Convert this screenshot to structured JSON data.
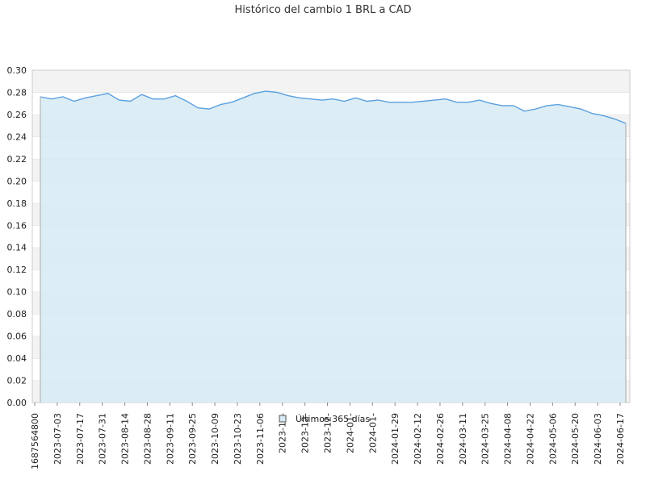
{
  "chart_data": {
    "type": "area",
    "title": "Histórico del cambio 1 BRL a CAD",
    "xlabel": "",
    "ylabel": "",
    "ylim": [
      0,
      0.3
    ],
    "y_ticks": [
      "0.00",
      "0.02",
      "0.04",
      "0.06",
      "0.08",
      "0.10",
      "0.12",
      "0.14",
      "0.16",
      "0.18",
      "0.20",
      "0.22",
      "0.24",
      "0.26",
      "0.28",
      "0.30"
    ],
    "x_tick_labels": [
      "1687564800",
      "2023-07-03",
      "2023-07-17",
      "2023-07-31",
      "2023-08-14",
      "2023-08-28",
      "2023-09-11",
      "2023-09-25",
      "2023-10-09",
      "2023-10-23",
      "2023-11-06",
      "2023-11-",
      "2023-12-",
      "2023-12-",
      "2024-01-",
      "2024-01-",
      "2024-01-29",
      "2024-02-12",
      "2024-02-26",
      "2024-03-11",
      "2024-03-25",
      "2024-04-08",
      "2024-04-22",
      "2024-05-06",
      "2024-05-20",
      "2024-06-03",
      "2024-06-17"
    ],
    "legend": {
      "label": "Últimos 365 días",
      "placement": "bottom-center"
    },
    "grid": true,
    "series": [
      {
        "name": "Últimos 365 días",
        "color": "#5aa0e0",
        "fill": "#d6eaf3",
        "x": [
          "2023-06-24",
          "2023-07-01",
          "2023-07-08",
          "2023-07-15",
          "2023-07-22",
          "2023-07-29",
          "2023-08-05",
          "2023-08-12",
          "2023-08-19",
          "2023-08-26",
          "2023-09-02",
          "2023-09-09",
          "2023-09-16",
          "2023-09-23",
          "2023-09-30",
          "2023-10-07",
          "2023-10-14",
          "2023-10-21",
          "2023-10-28",
          "2023-11-04",
          "2023-11-11",
          "2023-11-18",
          "2023-11-25",
          "2023-12-02",
          "2023-12-09",
          "2023-12-16",
          "2023-12-23",
          "2023-12-30",
          "2024-01-06",
          "2024-01-13",
          "2024-01-20",
          "2024-01-27",
          "2024-02-03",
          "2024-02-10",
          "2024-02-17",
          "2024-02-24",
          "2024-03-02",
          "2024-03-09",
          "2024-03-16",
          "2024-03-23",
          "2024-03-30",
          "2024-04-06",
          "2024-04-13",
          "2024-04-20",
          "2024-04-27",
          "2024-05-04",
          "2024-05-11",
          "2024-05-18",
          "2024-05-25",
          "2024-06-01",
          "2024-06-08",
          "2024-06-15",
          "2024-06-22"
        ],
        "values": [
          0.276,
          0.274,
          0.276,
          0.272,
          0.275,
          0.277,
          0.279,
          0.273,
          0.272,
          0.278,
          0.274,
          0.274,
          0.277,
          0.272,
          0.266,
          0.265,
          0.269,
          0.271,
          0.275,
          0.279,
          0.281,
          0.28,
          0.277,
          0.275,
          0.274,
          0.273,
          0.274,
          0.272,
          0.275,
          0.272,
          0.273,
          0.271,
          0.271,
          0.271,
          0.272,
          0.273,
          0.274,
          0.271,
          0.271,
          0.273,
          0.27,
          0.268,
          0.268,
          0.263,
          0.265,
          0.268,
          0.269,
          0.267,
          0.265,
          0.261,
          0.259,
          0.256,
          0.252
        ]
      }
    ]
  }
}
